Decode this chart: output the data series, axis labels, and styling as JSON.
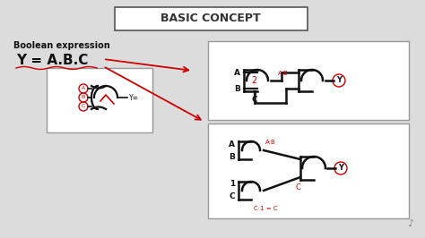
{
  "bg_color": "#dcdcdc",
  "title": "BASIC CONCEPT",
  "title_box_color": "#ffffff",
  "title_border_color": "#555555",
  "bool_expr_label": "Boolean expression",
  "bool_expr": "Y = A.B.C",
  "red_color": "#cc0000",
  "black_color": "#111111",
  "white_color": "#ffffff",
  "gray_color": "#999999"
}
